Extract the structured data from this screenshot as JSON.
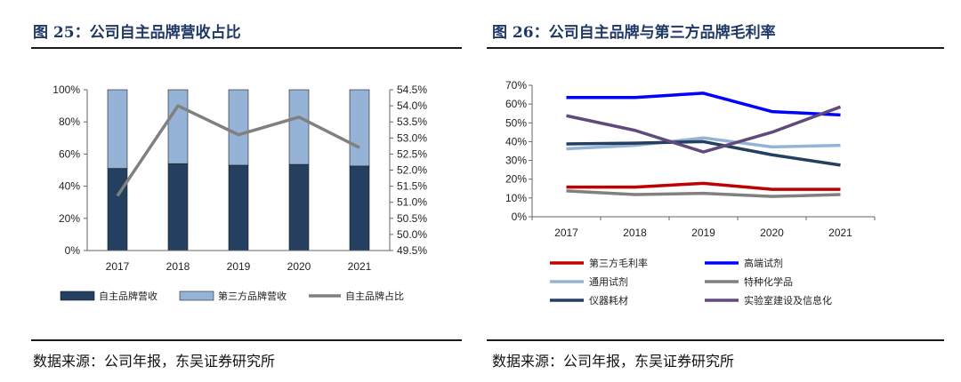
{
  "figures": {
    "fig25": {
      "title": "图 25：公司自主品牌营收占比",
      "source": "数据来源：公司年报，东吴证券研究所"
    },
    "fig26": {
      "title": "图 26：公司自主品牌与第三方品牌毛利率",
      "source": "数据来源：公司年报，东吴证券研究所"
    }
  },
  "chart_data": [
    {
      "type": "bar",
      "stacked": true,
      "title": "公司自主品牌营收占比",
      "categories": [
        "2017",
        "2018",
        "2019",
        "2020",
        "2021"
      ],
      "series": [
        {
          "name": "自主品牌营收",
          "values": [
            51,
            54,
            53,
            53.5,
            52.5
          ],
          "color": "#243f60",
          "axis": "left"
        },
        {
          "name": "第三方品牌营收",
          "values": [
            49,
            46,
            47,
            46.5,
            47.5
          ],
          "color": "#95b3d7",
          "axis": "left"
        },
        {
          "name": "自主品牌占比",
          "type": "line",
          "values": [
            51.2,
            54.0,
            53.1,
            53.65,
            52.7
          ],
          "color": "#808080",
          "axis": "right"
        }
      ],
      "yticks_left": [
        "0%",
        "20%",
        "40%",
        "60%",
        "80%",
        "100%"
      ],
      "ylim_left": [
        0,
        100
      ],
      "yticks_right": [
        "49.5%",
        "50.0%",
        "50.5%",
        "51.0%",
        "51.5%",
        "52.0%",
        "52.5%",
        "53.0%",
        "53.5%",
        "54.0%",
        "54.5%"
      ],
      "ylim_right": [
        49.5,
        54.5
      ],
      "legend": "bottom"
    },
    {
      "type": "line",
      "title": "公司自主品牌与第三方品牌毛利率",
      "x": [
        "2017",
        "2018",
        "2019",
        "2020",
        "2021"
      ],
      "series": [
        {
          "name": "第三方毛利率",
          "values": [
            15.8,
            15.8,
            17.8,
            14.6,
            14.6
          ],
          "color": "#c00000"
        },
        {
          "name": "高端试剂",
          "values": [
            63.5,
            63.5,
            65.8,
            56.0,
            54.2
          ],
          "color": "#0000ff"
        },
        {
          "name": "通用试剂",
          "values": [
            36.2,
            38.0,
            42.0,
            37.2,
            38.0
          ],
          "color": "#95b3d7"
        },
        {
          "name": "特种化学品",
          "values": [
            13.8,
            11.8,
            12.5,
            10.8,
            11.8
          ],
          "color": "#808080"
        },
        {
          "name": "仪器耗材",
          "values": [
            38.8,
            39.2,
            40.0,
            33.0,
            27.5
          ],
          "color": "#243f60"
        },
        {
          "name": "实验室建设及信息化",
          "values": [
            53.8,
            46.0,
            34.5,
            45.0,
            58.5
          ],
          "color": "#604a7b"
        }
      ],
      "yticks": [
        "0%",
        "10%",
        "20%",
        "30%",
        "40%",
        "50%",
        "60%",
        "70%"
      ],
      "ylim": [
        0,
        70
      ],
      "legend": "bottom"
    }
  ]
}
